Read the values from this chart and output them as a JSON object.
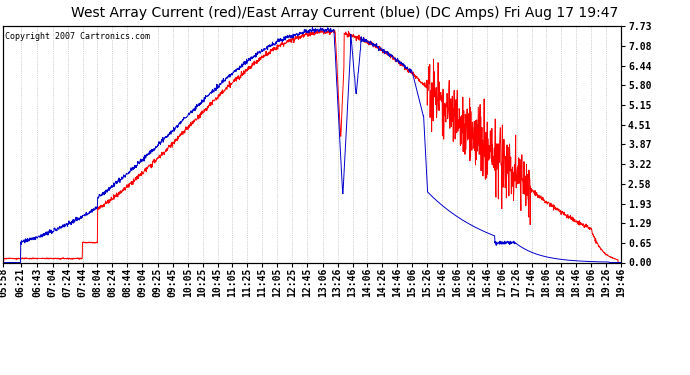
{
  "title": "West Array Current (red)/East Array Current (blue) (DC Amps) Fri Aug 17 19:47",
  "copyright": "Copyright 2007 Cartronics.com",
  "yticks": [
    0.0,
    0.65,
    1.29,
    1.93,
    2.58,
    3.22,
    3.87,
    4.51,
    5.15,
    5.8,
    6.44,
    7.08,
    7.73
  ],
  "ymax": 7.73,
  "ymin": 0.0,
  "background_color": "#ffffff",
  "plot_bg_color": "#ffffff",
  "grid_color": "#aaaaaa",
  "title_fontsize": 10,
  "tick_fontsize": 7,
  "red_color": "#ff0000",
  "blue_color": "#0000cc",
  "xtick_labels": [
    "05:58",
    "06:21",
    "06:43",
    "07:04",
    "07:24",
    "07:44",
    "08:04",
    "08:24",
    "08:44",
    "09:04",
    "09:25",
    "09:45",
    "10:05",
    "10:25",
    "10:45",
    "11:05",
    "11:25",
    "11:45",
    "12:05",
    "12:25",
    "12:45",
    "13:06",
    "13:26",
    "13:46",
    "14:06",
    "14:26",
    "14:46",
    "15:06",
    "15:26",
    "15:46",
    "16:06",
    "16:26",
    "16:46",
    "17:06",
    "17:26",
    "17:46",
    "18:06",
    "18:26",
    "18:46",
    "19:06",
    "19:26",
    "19:46"
  ]
}
